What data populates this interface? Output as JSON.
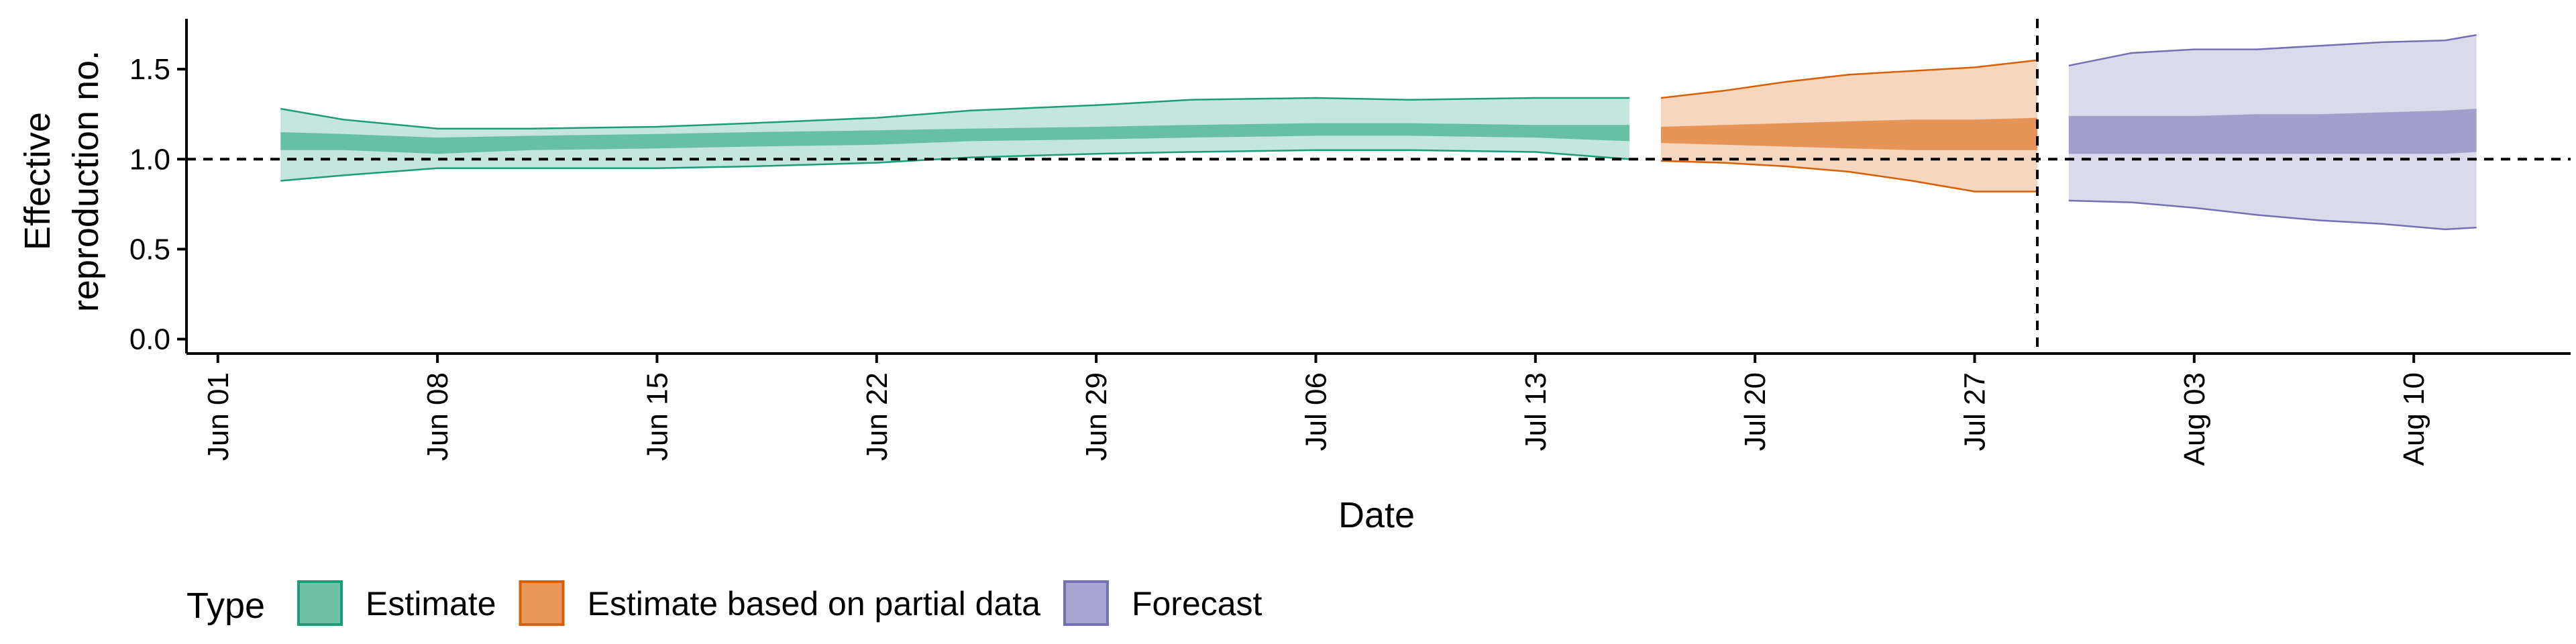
{
  "chart_data": {
    "type": "area",
    "xlabel": "Date",
    "ylabel_lines": [
      "Effective",
      "reproduction no."
    ],
    "x_ticks": [
      "Jun 01",
      "Jun 08",
      "Jun 15",
      "Jun 22",
      "Jun 29",
      "Jul 06",
      "Jul 13",
      "Jul 20",
      "Jul 27",
      "Aug 03",
      "Aug 10"
    ],
    "y_ticks": [
      "0.0",
      "0.5",
      "1.0",
      "1.5"
    ],
    "ylim": [
      -0.08,
      1.78
    ],
    "xlim": [
      "2020-05-31",
      "2020-08-15"
    ],
    "reference_hline": 1.0,
    "reference_vline": "2020-07-29",
    "grid": false,
    "legend": {
      "title": "Type",
      "position": "bottom",
      "entries": [
        {
          "label": "Estimate",
          "fill": "#6fc2a6",
          "stroke": "#1b9e77"
        },
        {
          "label": "Estimate based on partial data",
          "fill": "#e9975b",
          "stroke": "#d95f02"
        },
        {
          "label": "Forecast",
          "fill": "#a9a5d2",
          "stroke": "#7570b3"
        }
      ]
    },
    "series": [
      {
        "name": "Estimate",
        "color": "#1b9e77",
        "dates": [
          "2020-06-03",
          "2020-06-05",
          "2020-06-08",
          "2020-06-11",
          "2020-06-15",
          "2020-06-18",
          "2020-06-22",
          "2020-06-25",
          "2020-06-29",
          "2020-07-02",
          "2020-07-06",
          "2020-07-09",
          "2020-07-13",
          "2020-07-16"
        ],
        "lower90": [
          0.88,
          0.91,
          0.95,
          0.95,
          0.95,
          0.96,
          0.98,
          1.01,
          1.03,
          1.04,
          1.05,
          1.05,
          1.04,
          1.0
        ],
        "lower50": [
          1.05,
          1.05,
          1.03,
          1.05,
          1.06,
          1.07,
          1.08,
          1.1,
          1.11,
          1.12,
          1.13,
          1.13,
          1.12,
          1.1
        ],
        "upper50": [
          1.15,
          1.14,
          1.12,
          1.13,
          1.14,
          1.15,
          1.16,
          1.17,
          1.18,
          1.19,
          1.2,
          1.2,
          1.19,
          1.19
        ],
        "upper90": [
          1.28,
          1.22,
          1.17,
          1.17,
          1.18,
          1.2,
          1.23,
          1.27,
          1.3,
          1.33,
          1.34,
          1.33,
          1.34,
          1.34
        ]
      },
      {
        "name": "Estimate based on partial data",
        "color": "#d95f02",
        "dates": [
          "2020-07-17",
          "2020-07-19",
          "2020-07-21",
          "2020-07-23",
          "2020-07-25",
          "2020-07-27",
          "2020-07-29"
        ],
        "lower90": [
          0.99,
          0.98,
          0.96,
          0.93,
          0.88,
          0.82,
          0.82
        ],
        "lower50": [
          1.09,
          1.08,
          1.07,
          1.06,
          1.05,
          1.05,
          1.05
        ],
        "upper50": [
          1.18,
          1.19,
          1.2,
          1.21,
          1.22,
          1.22,
          1.23
        ],
        "upper90": [
          1.34,
          1.38,
          1.43,
          1.47,
          1.49,
          1.51,
          1.55
        ]
      },
      {
        "name": "Forecast",
        "color": "#7570b3",
        "dates": [
          "2020-07-30",
          "2020-08-01",
          "2020-08-03",
          "2020-08-05",
          "2020-08-07",
          "2020-08-09",
          "2020-08-11",
          "2020-08-12"
        ],
        "lower90": [
          0.77,
          0.76,
          0.73,
          0.69,
          0.66,
          0.64,
          0.61,
          0.62
        ],
        "lower50": [
          1.03,
          1.03,
          1.03,
          1.03,
          1.03,
          1.03,
          1.03,
          1.04
        ],
        "upper50": [
          1.24,
          1.24,
          1.24,
          1.25,
          1.25,
          1.26,
          1.27,
          1.28
        ],
        "upper90": [
          1.52,
          1.59,
          1.61,
          1.61,
          1.63,
          1.65,
          1.66,
          1.69
        ]
      }
    ]
  }
}
